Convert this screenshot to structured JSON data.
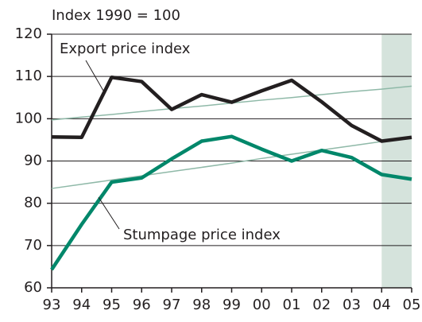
{
  "chart_data": {
    "type": "line",
    "subtitle": "Index 1990 = 100",
    "categories": [
      "93",
      "94",
      "95",
      "96",
      "97",
      "98",
      "99",
      "00",
      "01",
      "02",
      "03",
      "04",
      "05"
    ],
    "series": [
      {
        "name": "Export price index",
        "color": "#231f20",
        "values": [
          95.7,
          95.6,
          109.8,
          108.8,
          102.2,
          105.7,
          103.9,
          106.6,
          109.1,
          104.0,
          98.4,
          94.7,
          95.6
        ]
      },
      {
        "name": "Stumpage price index",
        "color": "#00876a",
        "values": [
          64.3,
          75.0,
          85.0,
          86.0,
          90.5,
          94.7,
          95.8,
          92.8,
          90.0,
          92.5,
          90.8,
          86.8,
          85.7
        ]
      },
      {
        "color": "#8fb9a8",
        "values": [
          99.7,
          100.4,
          101.0,
          101.7,
          102.4,
          103.0,
          103.7,
          104.4,
          105.0,
          105.7,
          106.4,
          107.0,
          107.7
        ]
      },
      {
        "color": "#8fb9a8",
        "values": [
          83.5,
          84.5,
          85.5,
          86.5,
          87.5,
          88.5,
          89.5,
          90.6,
          91.6,
          92.6,
          93.6,
          94.6,
          95.6
        ]
      }
    ],
    "shaded": {
      "from": "04",
      "to": "05",
      "color": "#d5e3dc"
    },
    "ylim": [
      60,
      120
    ],
    "yticks": [
      60,
      70,
      80,
      90,
      100,
      110,
      120
    ],
    "grid": true
  }
}
